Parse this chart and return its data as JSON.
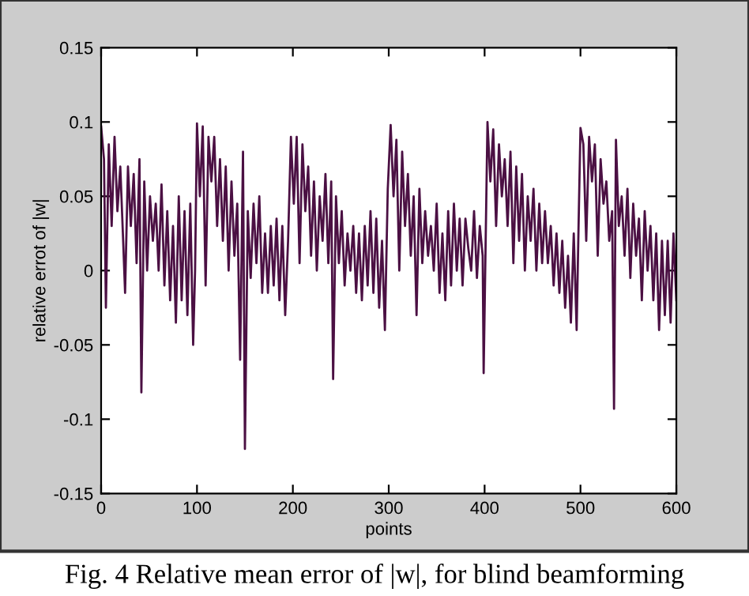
{
  "chart_data": {
    "type": "line",
    "xlabel": "points",
    "ylabel": "relative errot of |w|",
    "annotations": [
      "Fig. 4 Relative mean error of |w|, for blind beamforming"
    ],
    "xlim": [
      0,
      600
    ],
    "xticks": [
      0,
      100,
      200,
      300,
      400,
      500,
      600
    ],
    "ylim": [
      -0.15,
      0.15
    ],
    "yticks": [
      -0.15,
      -0.1,
      -0.05,
      0,
      0.05,
      0.1,
      0.15
    ],
    "grid": false,
    "legend": false,
    "marker": "none",
    "line_style": "solid",
    "series": [
      {
        "color": "#4b1043",
        "x": [
          0,
          3,
          5,
          8,
          11,
          14,
          17,
          20,
          23,
          25,
          28,
          31,
          34,
          37,
          40,
          42,
          45,
          48,
          51,
          54,
          57,
          60,
          63,
          66,
          69,
          72,
          75,
          78,
          81,
          84,
          87,
          90,
          93,
          96,
          98,
          100,
          103,
          106,
          109,
          112,
          115,
          118,
          121,
          124,
          127,
          130,
          133,
          136,
          139,
          142,
          145,
          148,
          150,
          153,
          156,
          159,
          162,
          165,
          168,
          171,
          174,
          177,
          180,
          183,
          186,
          189,
          192,
          195,
          198,
          201,
          204,
          207,
          210,
          213,
          216,
          219,
          222,
          225,
          228,
          231,
          234,
          237,
          240,
          242,
          245,
          248,
          251,
          254,
          257,
          260,
          263,
          266,
          269,
          272,
          275,
          278,
          281,
          284,
          287,
          290,
          293,
          296,
          299,
          302,
          305,
          308,
          311,
          314,
          317,
          320,
          323,
          326,
          329,
          332,
          335,
          338,
          341,
          344,
          347,
          350,
          353,
          356,
          359,
          362,
          365,
          368,
          371,
          374,
          377,
          380,
          383,
          386,
          389,
          392,
          395,
          398,
          399,
          403,
          406,
          409,
          412,
          415,
          418,
          421,
          424,
          427,
          430,
          433,
          436,
          439,
          442,
          445,
          448,
          451,
          454,
          457,
          460,
          463,
          466,
          469,
          472,
          475,
          478,
          481,
          484,
          487,
          490,
          493,
          496,
          498,
          500,
          503,
          506,
          509,
          512,
          515,
          518,
          521,
          524,
          527,
          530,
          533,
          535,
          537,
          540,
          543,
          546,
          549,
          552,
          555,
          558,
          561,
          564,
          567,
          570,
          573,
          576,
          579,
          582,
          585,
          588,
          591,
          594,
          597,
          600
        ],
        "values": [
          0.097,
          0.075,
          -0.025,
          0.085,
          0.03,
          0.09,
          0.04,
          0.07,
          0.02,
          -0.015,
          0.07,
          0.03,
          0.065,
          0.005,
          0.075,
          -0.082,
          0.06,
          0.0,
          0.05,
          0.02,
          0.045,
          0.0,
          0.058,
          -0.01,
          0.04,
          -0.02,
          0.03,
          -0.035,
          0.05,
          -0.02,
          0.04,
          -0.03,
          0.045,
          -0.05,
          0.0,
          0.099,
          0.05,
          0.097,
          -0.01,
          0.09,
          0.06,
          0.09,
          0.03,
          0.075,
          0.02,
          0.07,
          0.0,
          0.06,
          0.01,
          0.045,
          -0.06,
          0.08,
          -0.12,
          0.04,
          -0.005,
          0.045,
          0.005,
          0.05,
          -0.015,
          0.025,
          -0.015,
          0.03,
          -0.01,
          0.035,
          -0.02,
          0.03,
          -0.03,
          0.02,
          0.09,
          0.045,
          0.09,
          0.005,
          0.085,
          0.04,
          0.07,
          0.01,
          0.06,
          0.0,
          0.05,
          0.02,
          0.065,
          0.005,
          0.06,
          -0.073,
          0.05,
          0.005,
          0.04,
          -0.01,
          0.025,
          0.0,
          0.03,
          -0.015,
          0.025,
          -0.02,
          0.03,
          -0.01,
          0.04,
          -0.015,
          0.035,
          -0.025,
          0.02,
          -0.04,
          0.055,
          0.098,
          0.05,
          0.088,
          0.0,
          0.08,
          0.03,
          0.065,
          0.01,
          0.05,
          -0.03,
          0.055,
          0.005,
          0.04,
          0.01,
          0.03,
          0.0,
          0.045,
          -0.015,
          0.025,
          -0.02,
          0.04,
          -0.01,
          0.045,
          0.0,
          0.035,
          -0.01,
          0.035,
          0.015,
          0.0,
          0.04,
          -0.005,
          0.03,
          0.01,
          -0.069,
          0.1,
          0.06,
          0.095,
          0.03,
          0.085,
          0.05,
          0.075,
          0.03,
          0.08,
          0.005,
          0.07,
          0.02,
          0.065,
          0.0,
          0.05,
          0.02,
          0.055,
          0.0,
          0.045,
          0.005,
          0.04,
          0.005,
          0.03,
          -0.01,
          0.025,
          -0.015,
          0.02,
          -0.025,
          0.01,
          -0.035,
          0.025,
          -0.04,
          0.03,
          0.096,
          0.085,
          0.02,
          0.09,
          0.06,
          0.085,
          0.01,
          0.075,
          0.045,
          0.06,
          0.02,
          0.04,
          -0.093,
          0.088,
          0.03,
          0.05,
          0.01,
          0.055,
          -0.005,
          0.045,
          0.01,
          0.035,
          -0.02,
          0.04,
          0.0,
          0.03,
          -0.02,
          0.025,
          -0.04,
          0.02,
          -0.03,
          0.02,
          -0.035,
          0.025,
          -0.02
        ]
      }
    ]
  }
}
